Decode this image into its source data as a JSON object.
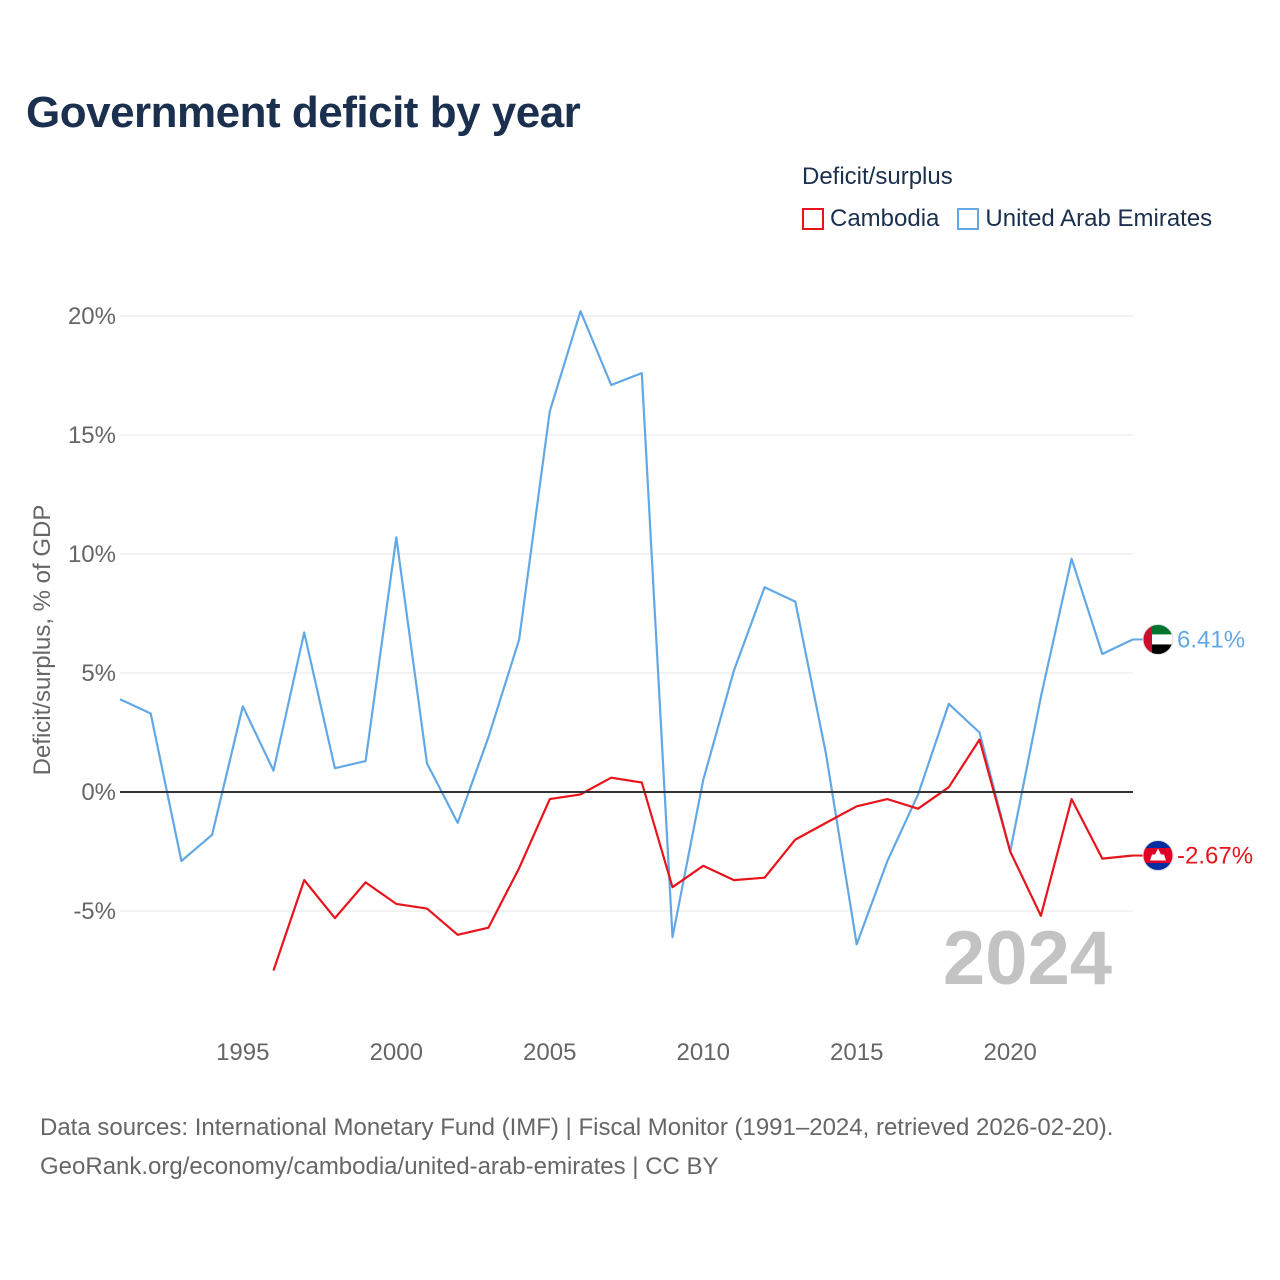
{
  "title": "Government deficit by year",
  "legend": {
    "title": "Deficit/surplus",
    "items": [
      {
        "label": "Cambodia",
        "color": "#e8141b"
      },
      {
        "label": "United Arab Emirates",
        "color": "#62a8e5"
      }
    ]
  },
  "footer": {
    "line1": "Data sources: International Monetary Fund (IMF) | Fiscal Monitor (1991–2024, retrieved 2026-02-20).",
    "line2": "GeoRank.org/economy/cambodia/united-arab-emirates | CC BY"
  },
  "chart_data": {
    "type": "line",
    "title": "Government deficit by year",
    "ylabel": "Deficit/surplus, % of GDP",
    "xlabel": "",
    "xlim": [
      1991,
      2024
    ],
    "ylim": [
      -9,
      20.5
    ],
    "yticks": [
      -5,
      0,
      5,
      10,
      15,
      20
    ],
    "ytick_labels": [
      "-5%",
      "0%",
      "5%",
      "10%",
      "15%",
      "20%"
    ],
    "xticks": [
      1995,
      2000,
      2005,
      2010,
      2015,
      2020
    ],
    "xtick_labels": [
      "1995",
      "2000",
      "2005",
      "2010",
      "2015",
      "2020"
    ],
    "watermark_year": "2024",
    "series": [
      {
        "name": "United Arab Emirates",
        "color": "#62a8e5",
        "end_label": "6.41%",
        "x": [
          1991,
          1992,
          1993,
          1994,
          1995,
          1996,
          1997,
          1998,
          1999,
          2000,
          2001,
          2002,
          2003,
          2004,
          2005,
          2006,
          2007,
          2008,
          2009,
          2010,
          2011,
          2012,
          2013,
          2014,
          2015,
          2016,
          2017,
          2018,
          2019,
          2020,
          2021,
          2022,
          2023,
          2024
        ],
        "values": [
          3.9,
          3.3,
          -2.9,
          -1.8,
          3.6,
          0.9,
          6.7,
          1.0,
          1.3,
          10.7,
          1.2,
          -1.3,
          2.3,
          6.4,
          16.0,
          20.2,
          17.1,
          17.6,
          -6.1,
          0.5,
          5.1,
          8.6,
          8.0,
          1.6,
          -6.4,
          -2.9,
          -0.1,
          3.7,
          2.5,
          -2.5,
          4.0,
          9.8,
          5.8,
          6.41
        ]
      },
      {
        "name": "Cambodia",
        "color": "#e8141b",
        "end_label": "-2.67%",
        "x": [
          1996,
          1997,
          1998,
          1999,
          2000,
          2001,
          2002,
          2003,
          2004,
          2005,
          2006,
          2007,
          2008,
          2009,
          2010,
          2011,
          2012,
          2013,
          2014,
          2015,
          2016,
          2017,
          2018,
          2019,
          2020,
          2021,
          2022,
          2023,
          2024
        ],
        "values": [
          -7.5,
          -3.7,
          -5.3,
          -3.8,
          -4.7,
          -4.9,
          -6.0,
          -5.7,
          -3.2,
          -0.3,
          -0.1,
          0.6,
          0.4,
          -4.0,
          -3.1,
          -3.7,
          -3.6,
          -2.0,
          -1.3,
          -0.6,
          -0.3,
          -0.7,
          0.2,
          2.2,
          -2.5,
          -5.2,
          -0.3,
          -2.8,
          -2.67
        ]
      }
    ]
  }
}
